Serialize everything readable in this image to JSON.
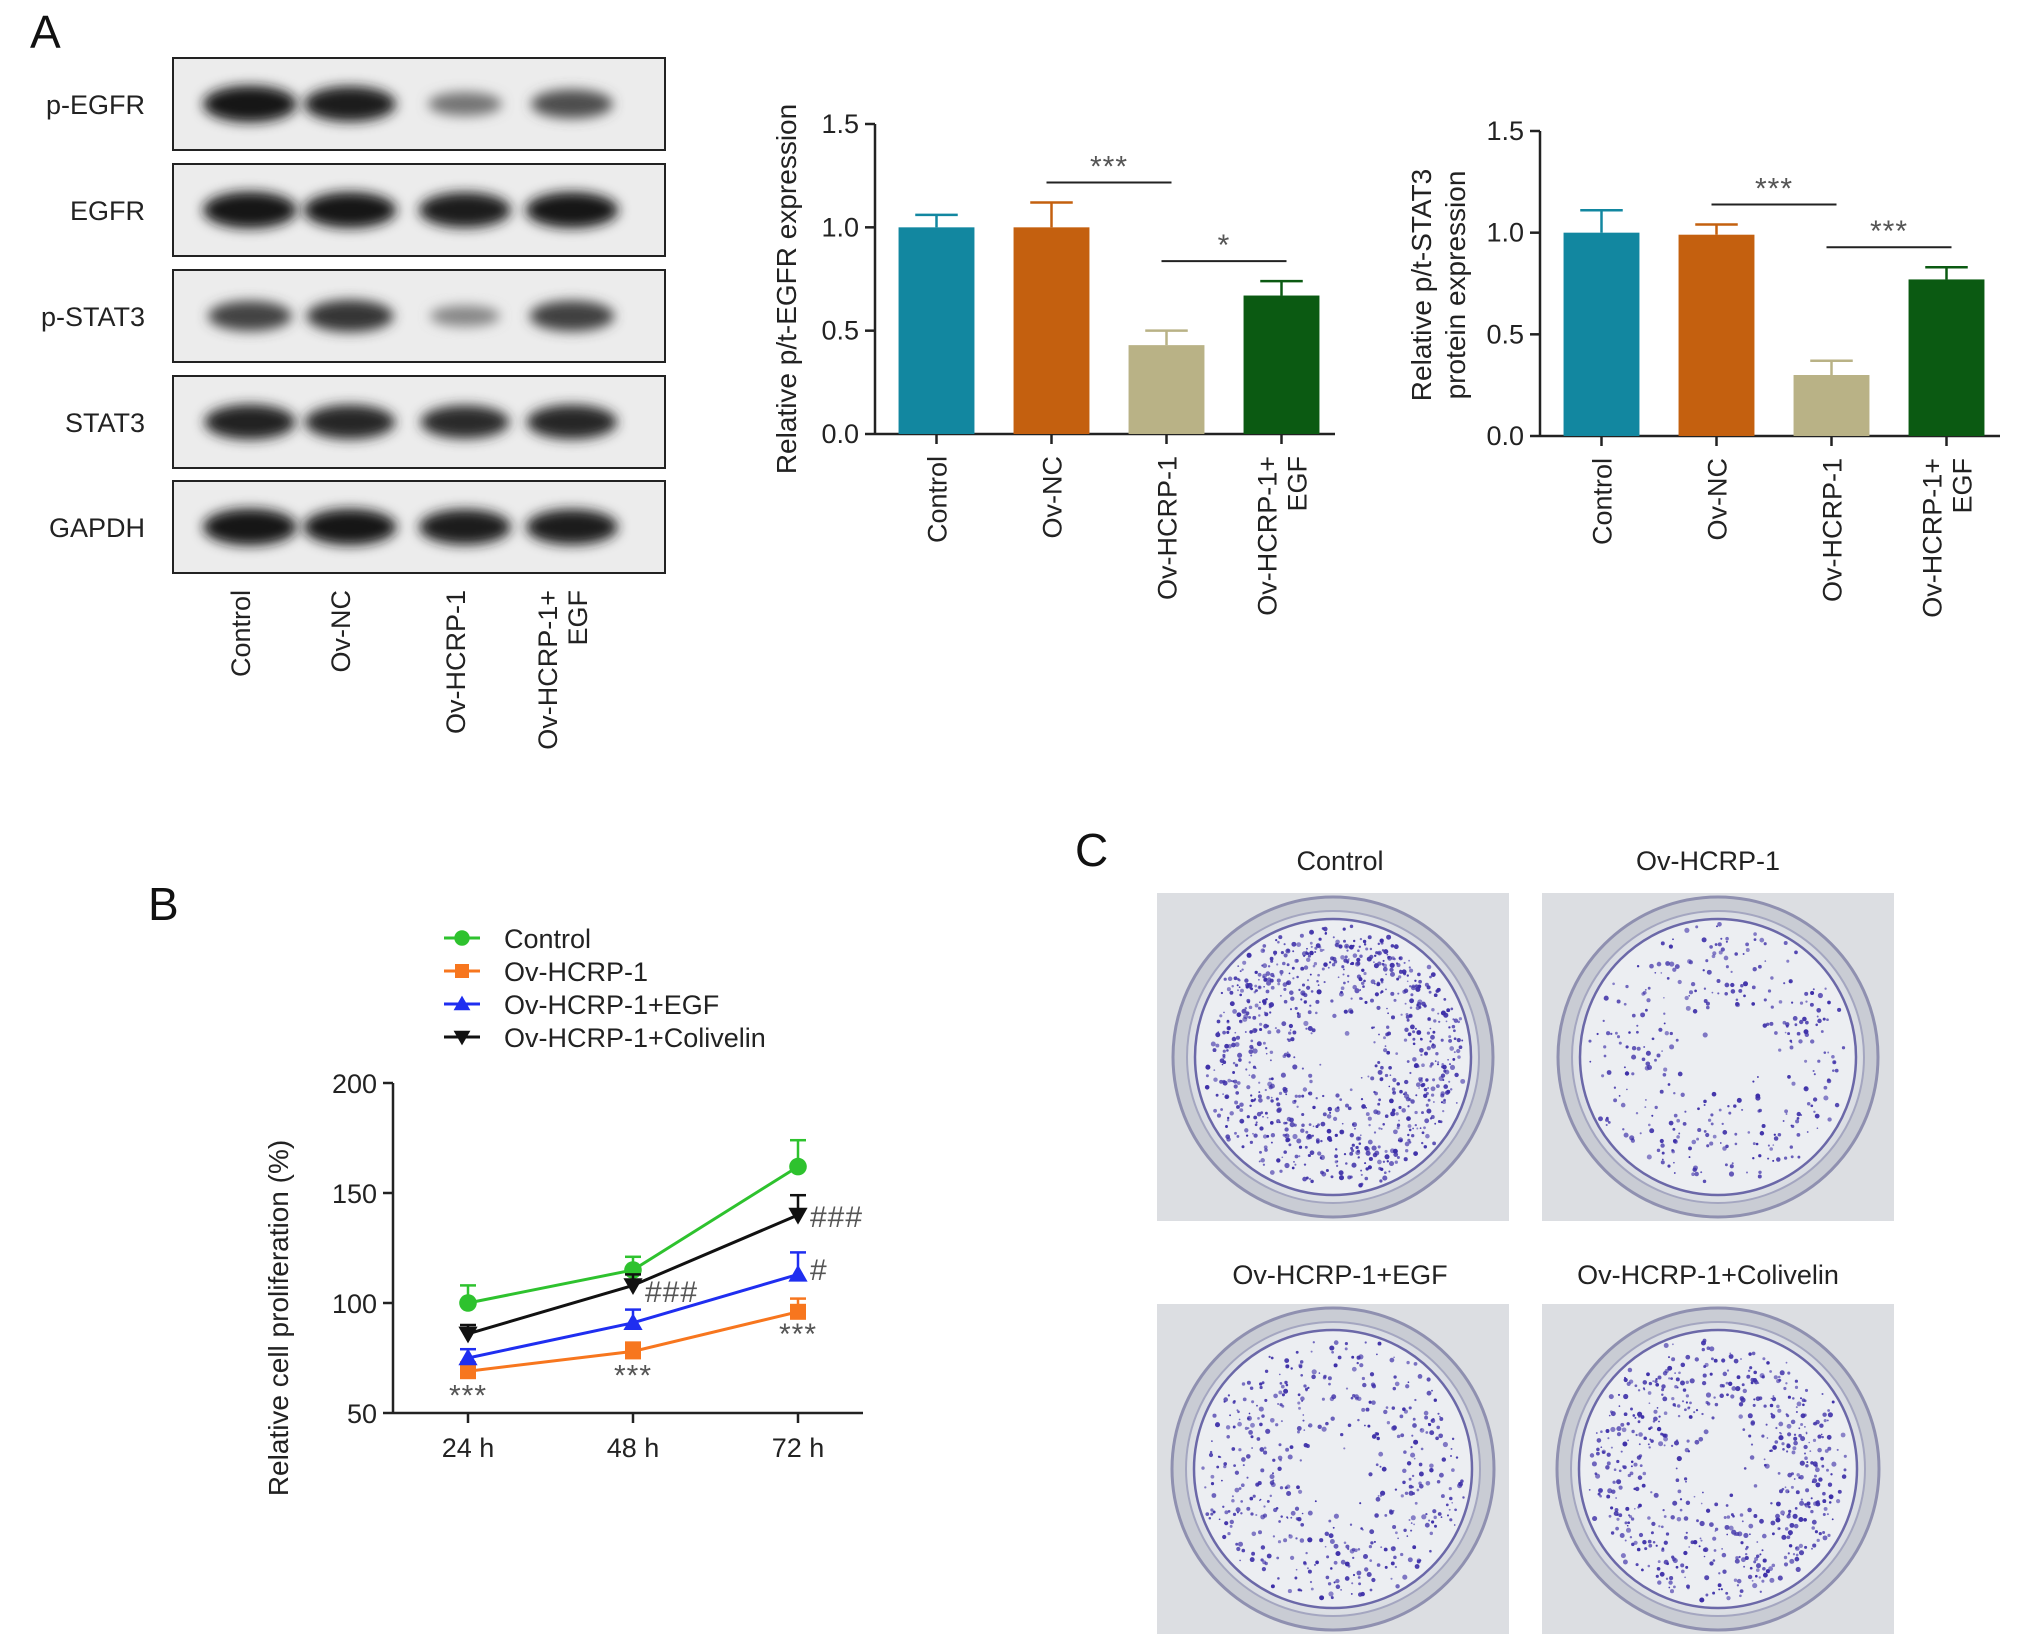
{
  "panels": {
    "a": "A",
    "b": "B",
    "c": "C"
  },
  "colors": {
    "control": "#1287a0",
    "ov_nc": "#c4600f",
    "ov_hcrp1": "#b9b286",
    "ov_hcrp1_egf": "#0b5a12",
    "line_control": "#2ec22e",
    "line_hcrp1": "#f7761e",
    "line_egf": "#1f2ef0",
    "line_colivelin": "#111111",
    "colony_dot": "#3d2fa8"
  },
  "western_blot": {
    "rows": [
      "p-EGFR",
      "EGFR",
      "p-STAT3",
      "STAT3",
      "GAPDH"
    ],
    "lanes": [
      "Control",
      "Ov-NC",
      "Ov-HCRP-1",
      "Ov-HCRP-1+\nEGF"
    ],
    "band_intensity": [
      [
        0.95,
        0.9,
        0.45,
        0.65
      ],
      [
        0.95,
        0.92,
        0.9,
        0.92
      ],
      [
        0.7,
        0.78,
        0.35,
        0.72
      ],
      [
        0.88,
        0.86,
        0.82,
        0.86
      ],
      [
        0.95,
        0.93,
        0.9,
        0.9
      ]
    ]
  },
  "chart_data": [
    {
      "type": "bar",
      "categories": [
        "Control",
        "Ov-NC",
        "Ov-HCRP-1",
        "Ov-HCRP-1+\nEGF"
      ],
      "values": [
        1.0,
        1.0,
        0.43,
        0.67
      ],
      "errors": [
        0.06,
        0.12,
        0.07,
        0.07
      ],
      "ylabel": "Relative p/t-EGFR expression",
      "ylim": [
        0,
        1.5
      ],
      "yticks": [
        "0.0",
        "0.5",
        "1.0",
        "1.5"
      ],
      "significance": [
        {
          "from": 1,
          "to": 2,
          "label": "***"
        },
        {
          "from": 2,
          "to": 3,
          "label": "*"
        }
      ]
    },
    {
      "type": "bar",
      "categories": [
        "Control",
        "Ov-NC",
        "Ov-HCRP-1",
        "Ov-HCRP-1+\nEGF"
      ],
      "values": [
        1.0,
        0.99,
        0.3,
        0.77
      ],
      "errors": [
        0.11,
        0.05,
        0.07,
        0.06
      ],
      "ylabel": "Relative p/t-STAT3\nprotein expression",
      "ylim": [
        0,
        1.5
      ],
      "yticks": [
        "0.0",
        "0.5",
        "1.0",
        "1.5"
      ],
      "significance": [
        {
          "from": 1,
          "to": 2,
          "label": "***"
        },
        {
          "from": 2,
          "to": 3,
          "label": "***"
        }
      ]
    },
    {
      "type": "line",
      "x": [
        "24 h",
        "48 h",
        "72 h"
      ],
      "ylabel": "Relative cell proliferation (%)",
      "ylim": [
        50,
        200
      ],
      "yticks": [
        "50",
        "100",
        "150",
        "200"
      ],
      "legend": "top-left",
      "series": [
        {
          "name": "Control",
          "values": [
            100,
            115,
            162
          ],
          "errors": [
            8,
            6,
            12
          ],
          "marker": "circle"
        },
        {
          "name": "Ov-HCRP-1",
          "values": [
            69,
            78,
            96
          ],
          "errors": [
            4,
            4,
            6
          ],
          "marker": "square"
        },
        {
          "name": "Ov-HCRP-1+EGF",
          "values": [
            75,
            91,
            113
          ],
          "errors": [
            4,
            6,
            10
          ],
          "marker": "triangle-up"
        },
        {
          "name": "Ov-HCRP-1+Colivelin",
          "values": [
            86,
            108,
            140
          ],
          "errors": [
            4,
            5,
            9
          ],
          "marker": "triangle-down"
        }
      ],
      "annotations": [
        {
          "text": "***",
          "x": 0,
          "y": 58
        },
        {
          "text": "***",
          "x": 1,
          "y": 67
        },
        {
          "text": "***",
          "x": 2,
          "y": 86
        },
        {
          "text": "###",
          "x": 1,
          "y": 105
        },
        {
          "text": "#",
          "x": 2,
          "y": 115
        },
        {
          "text": "###",
          "x": 2,
          "y": 139
        }
      ]
    }
  ],
  "colony_assay": {
    "titles": [
      "Control",
      "Ov-HCRP-1",
      "Ov-HCRP-1+EGF",
      "Ov-HCRP-1+Colivelin"
    ],
    "density": [
      1.0,
      0.38,
      0.55,
      0.7
    ]
  }
}
